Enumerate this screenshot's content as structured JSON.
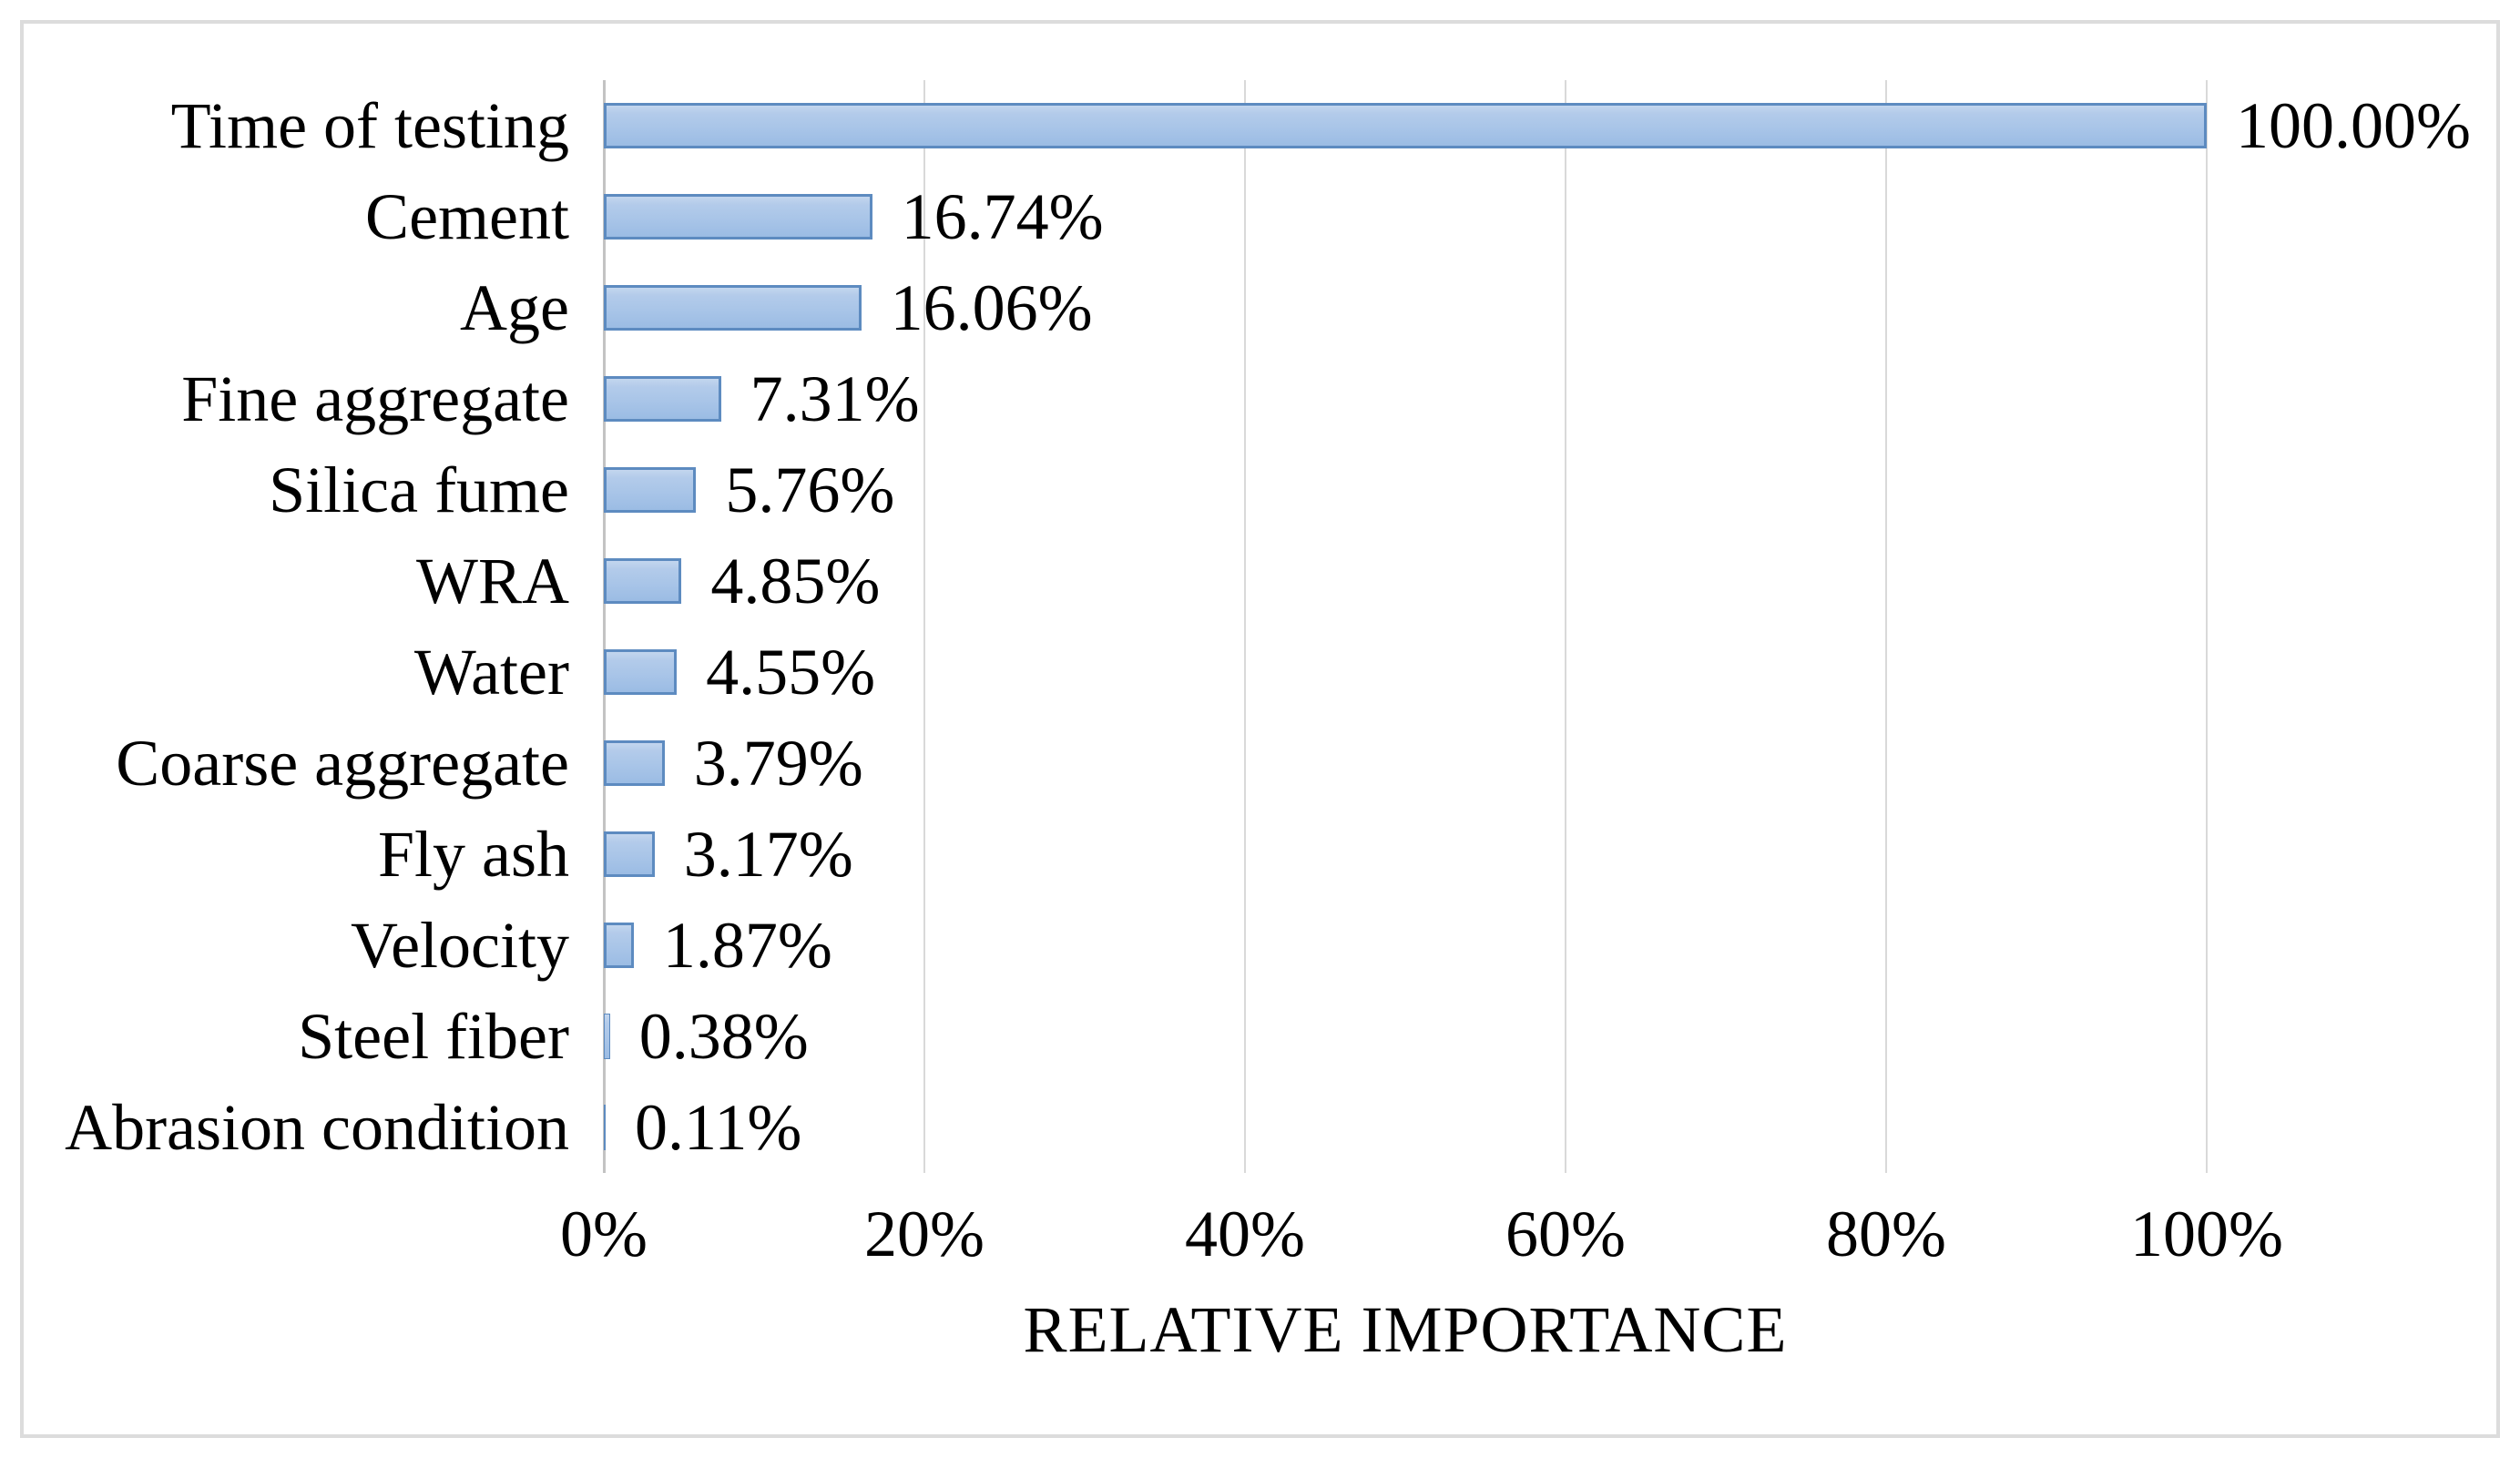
{
  "chart_data": {
    "type": "bar",
    "orientation": "horizontal",
    "title": "",
    "xlabel": "RELATIVE IMPORTANCE",
    "ylabel": "",
    "categories": [
      "Time of testing",
      "Cement",
      "Age",
      "Fine aggregate",
      "Silica fume",
      "WRA",
      "Water",
      "Coarse aggregate",
      "Fly ash",
      "Velocity",
      "Steel fiber",
      "Abrasion condition"
    ],
    "values": [
      100.0,
      16.74,
      16.06,
      7.31,
      5.76,
      4.85,
      4.55,
      3.79,
      3.17,
      1.87,
      0.38,
      0.11
    ],
    "value_labels": [
      "100.00%",
      "16.74%",
      "16.06%",
      "7.31%",
      "5.76%",
      "4.85%",
      "4.55%",
      "3.79%",
      "3.17%",
      "1.87%",
      "0.38%",
      "0.11%"
    ],
    "x_ticks": [
      "0%",
      "20%",
      "40%",
      "60%",
      "80%",
      "100%"
    ],
    "x_tick_values": [
      0,
      20,
      40,
      60,
      80,
      100
    ],
    "xlim": [
      0,
      100
    ],
    "grid": "vertical gridlines at each x tick",
    "legend": "none",
    "colors": {
      "bar_fill": "#aac6e8",
      "bar_fill_highlight": "#c3d6ee",
      "bar_border": "#5d8bc0",
      "gridline": "#d9d9d9",
      "axis_line": "#c3c3c3",
      "figure_border": "#dcdcdc",
      "text": "#000000",
      "background": "#ffffff"
    }
  }
}
